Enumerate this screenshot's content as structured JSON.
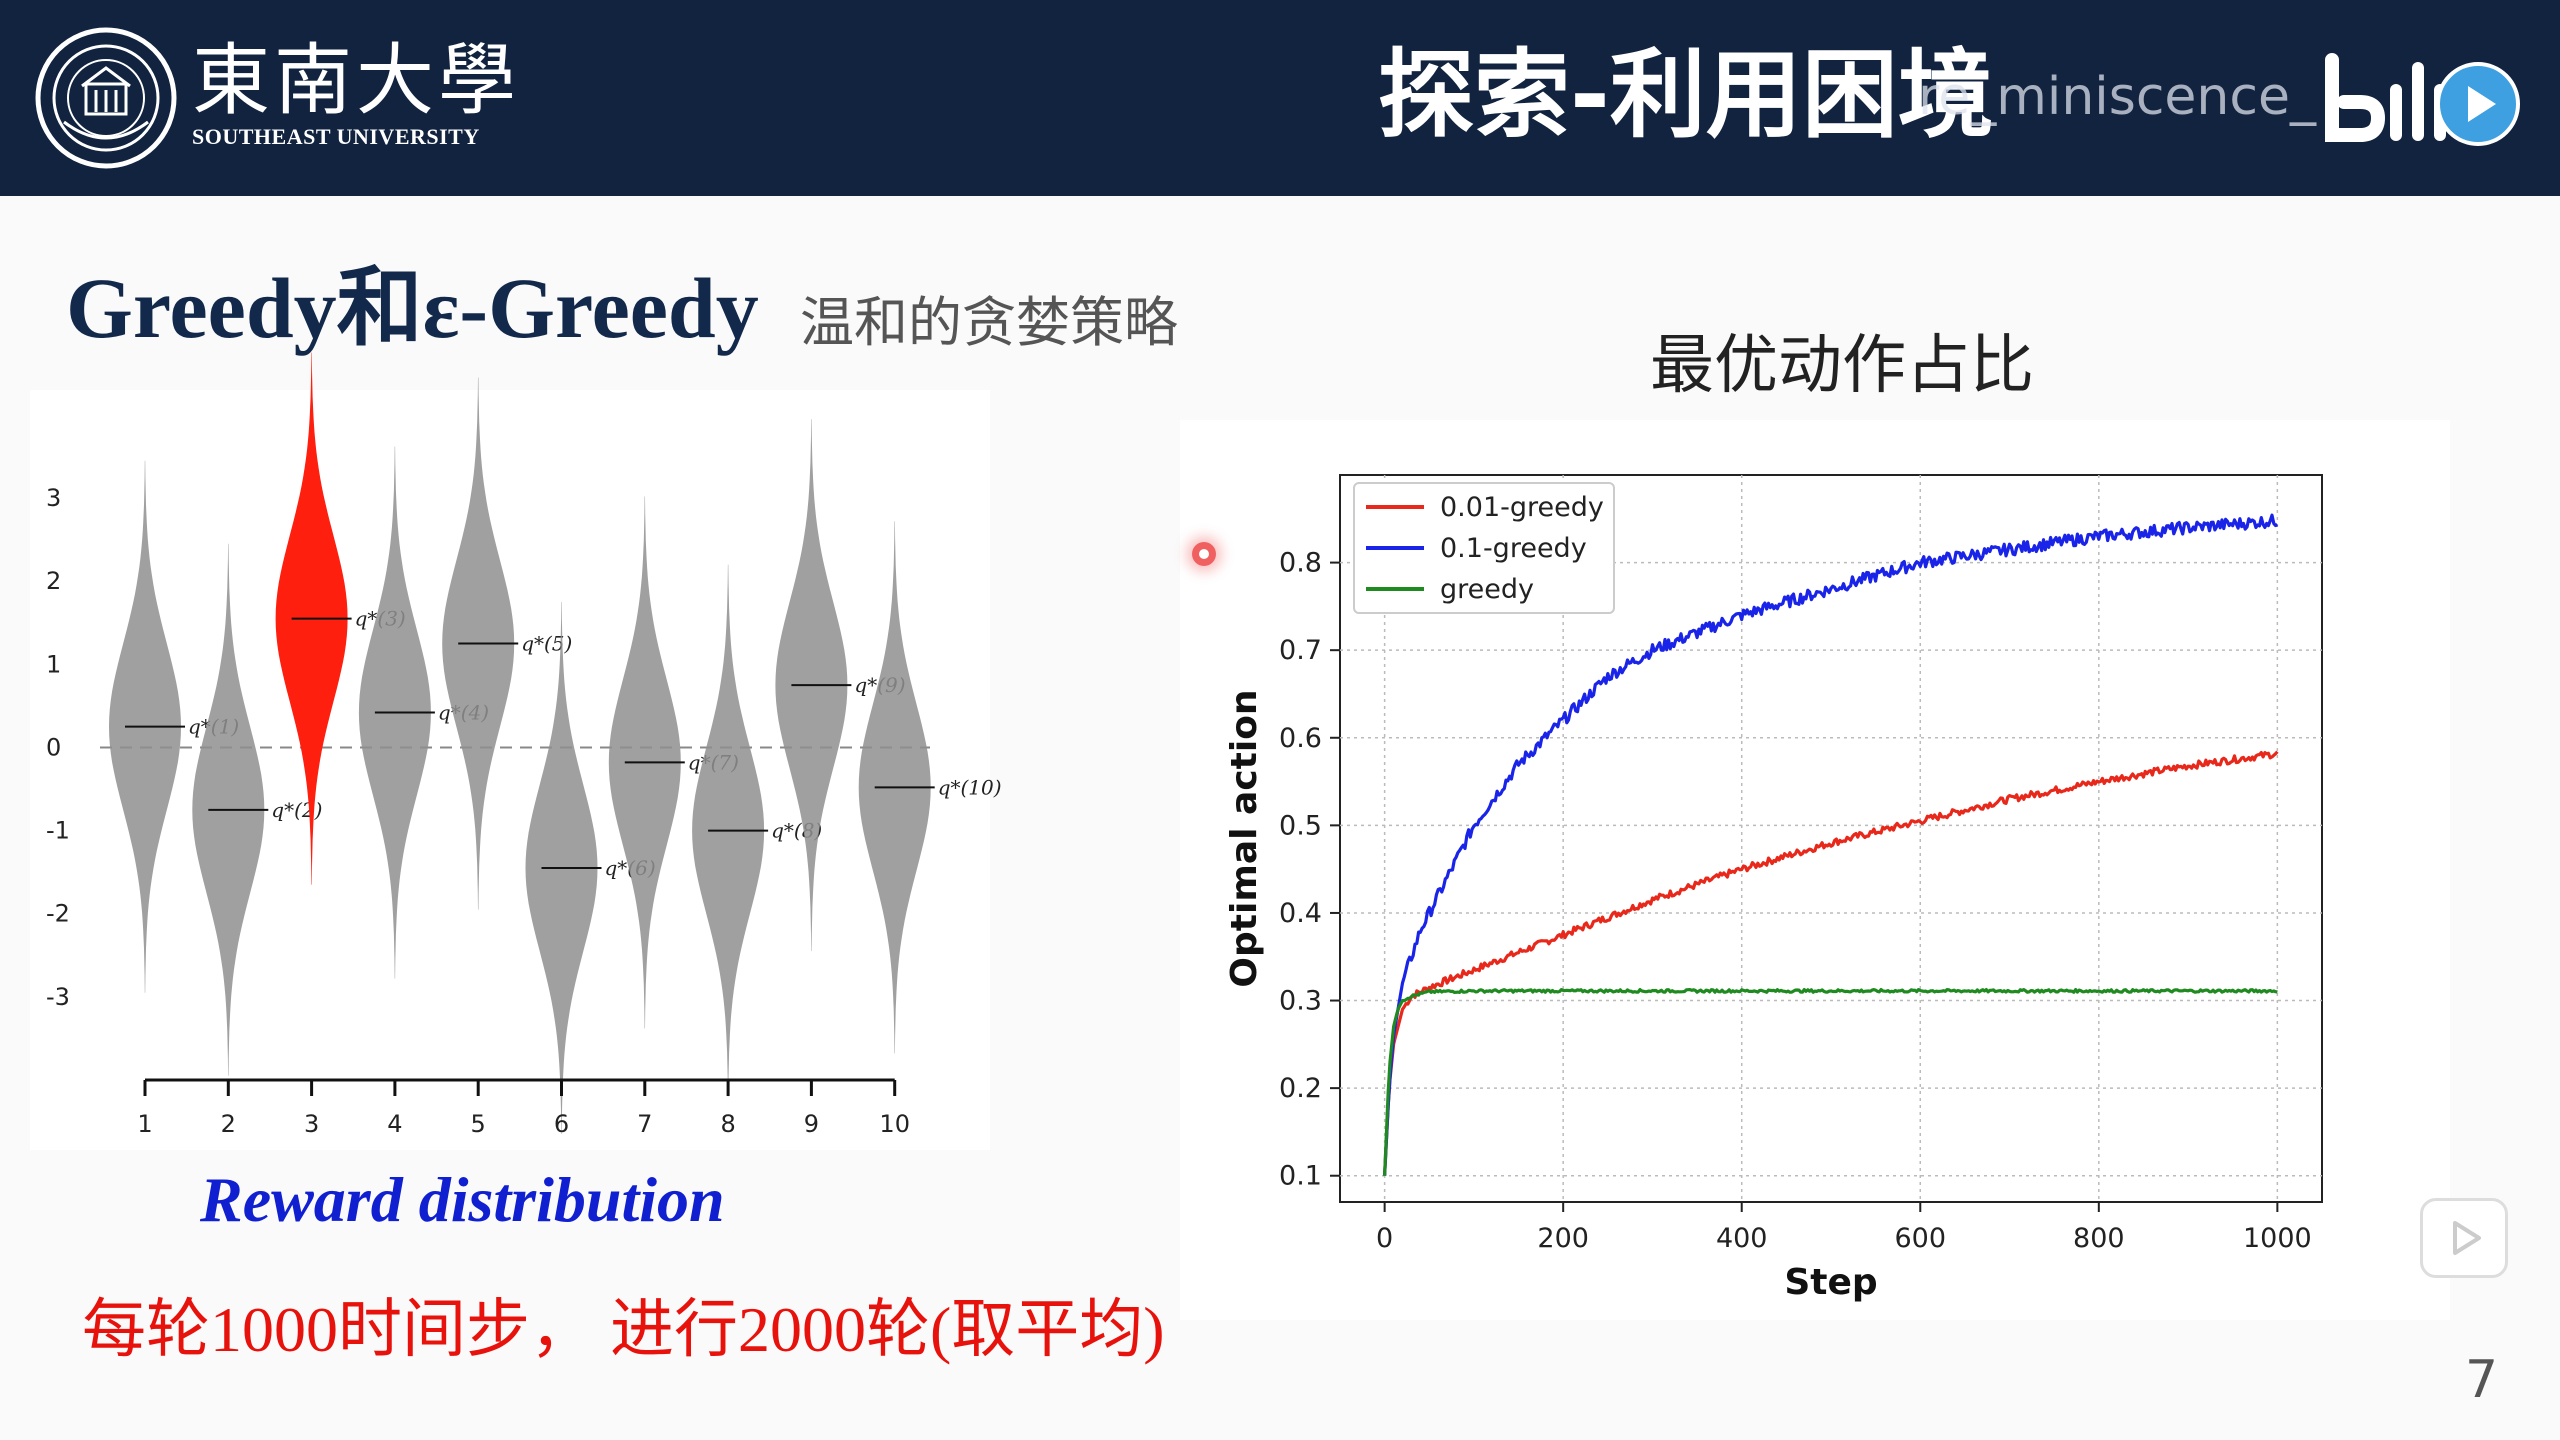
{
  "header": {
    "logo_cn": "東南大學",
    "logo_en": "SOUTHEAST UNIVERSITY",
    "title": "探索-利用困境",
    "watermark": "re_miniscence_"
  },
  "slide": {
    "subtitle": "Greedy和ε-Greedy",
    "subtitle_note": "温和的贪婪策略",
    "reward_caption": "Reward distribution",
    "bottom_note": "每轮1000时间步， 进行2000轮(取平均)",
    "page_number": "7"
  },
  "chart_data": [
    {
      "type": "violin",
      "title": "",
      "xlabel": "",
      "ylabel": "",
      "categories": [
        "1",
        "2",
        "3",
        "4",
        "5",
        "6",
        "7",
        "8",
        "9",
        "10"
      ],
      "ylim": [
        -4,
        4.3
      ],
      "yticks": [
        3,
        2,
        1,
        0,
        -1,
        -2,
        -3
      ],
      "means": [
        0.25,
        -0.75,
        1.55,
        0.42,
        1.25,
        -1.45,
        -0.18,
        -1.0,
        0.75,
        -0.48
      ],
      "labels": [
        "q*(1)",
        "q*(2)",
        "q*(3)",
        "q*(4)",
        "q*(5)",
        "q*(6)",
        "q*(7)",
        "q*(8)",
        "q*(9)",
        "q*(10)"
      ],
      "highlight_index": 2,
      "colors": {
        "default": "#8f8f8f",
        "highlight": "#ff1f0f"
      }
    },
    {
      "type": "line",
      "title": "最优动作占比",
      "xlabel": "Step",
      "ylabel": "Optimal action",
      "xlim": [
        -50,
        1050
      ],
      "ylim": [
        0.07,
        0.9
      ],
      "xticks": [
        0,
        200,
        400,
        600,
        800,
        1000
      ],
      "yticks": [
        0.1,
        0.2,
        0.3,
        0.4,
        0.5,
        0.6,
        0.7,
        0.8
      ],
      "grid": true,
      "legend": "top-left",
      "series": [
        {
          "name": "0.01-greedy",
          "color": "#e8281a",
          "x": [
            0,
            5,
            10,
            20,
            30,
            50,
            100,
            150,
            200,
            300,
            400,
            500,
            600,
            700,
            800,
            900,
            1000
          ],
          "values": [
            0.1,
            0.2,
            0.25,
            0.29,
            0.305,
            0.315,
            0.335,
            0.355,
            0.375,
            0.415,
            0.45,
            0.48,
            0.505,
            0.53,
            0.55,
            0.568,
            0.582
          ]
        },
        {
          "name": "0.1-greedy",
          "color": "#1a24e8",
          "x": [
            0,
            5,
            10,
            20,
            40,
            70,
            100,
            150,
            200,
            250,
            300,
            400,
            500,
            600,
            700,
            800,
            900,
            1000
          ],
          "values": [
            0.1,
            0.2,
            0.26,
            0.32,
            0.38,
            0.44,
            0.5,
            0.57,
            0.62,
            0.67,
            0.7,
            0.74,
            0.77,
            0.8,
            0.815,
            0.83,
            0.84,
            0.848
          ]
        },
        {
          "name": "greedy",
          "color": "#1f8a1f",
          "x": [
            0,
            5,
            10,
            15,
            20,
            30,
            50,
            100,
            200,
            400,
            600,
            800,
            1000
          ],
          "values": [
            0.1,
            0.22,
            0.27,
            0.29,
            0.3,
            0.305,
            0.31,
            0.311,
            0.311,
            0.311,
            0.311,
            0.311,
            0.311
          ]
        }
      ]
    }
  ]
}
